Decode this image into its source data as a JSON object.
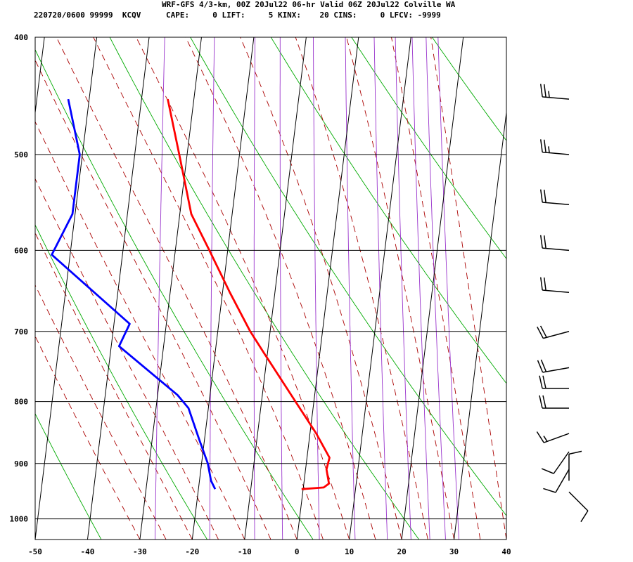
{
  "header": {
    "title": "WRF-GFS 4/3-km, 00Z 20Jul22 06-hr Valid 06Z 20Jul22 Colville WA",
    "station": "220720/0600 99999  KCQV",
    "indices": "CAPE:     0 LIFT:     5 KINX:    20 CINS:     0 LFCV: -9999"
  },
  "colors": {
    "temperature": "#ff0000",
    "dewpoint": "#0000ff",
    "dry_adiabat": "#00aa00",
    "moist_adiabat": "#aa0000",
    "mixing_ratio": "#9933cc",
    "grid": "#000000"
  },
  "chart_data": {
    "type": "skew-t log-p sounding",
    "x_ticks": [
      "-50",
      "-40",
      "-30",
      "-20",
      "-10",
      "0",
      "10",
      "20",
      "30",
      "40"
    ],
    "y_ticks": [
      "400",
      "500",
      "600",
      "700",
      "800",
      "900",
      "1000"
    ],
    "xlim": [
      -50,
      40
    ],
    "ylim_pressure_hPa": [
      1040,
      400
    ],
    "grid": true,
    "series": [
      {
        "key": "temperature",
        "units": "degC (unskewed)",
        "points": [
          {
            "p": 450,
            "t": -35.0
          },
          {
            "p": 500,
            "t": -31.5
          },
          {
            "p": 560,
            "t": -27.8
          },
          {
            "p": 600,
            "t": -23.5
          },
          {
            "p": 650,
            "t": -18.6
          },
          {
            "p": 700,
            "t": -13.8
          },
          {
            "p": 730,
            "t": -10.6
          },
          {
            "p": 800,
            "t": -3.5
          },
          {
            "p": 850,
            "t": 1.2
          },
          {
            "p": 890,
            "t": 4.3
          },
          {
            "p": 910,
            "t": 4.0
          },
          {
            "p": 935,
            "t": 4.8
          },
          {
            "p": 942,
            "t": 3.9
          },
          {
            "p": 945,
            "t": -0.3
          }
        ]
      },
      {
        "key": "dewpoint",
        "units": "degC (unskewed)",
        "points": [
          {
            "p": 450,
            "t": -54.0
          },
          {
            "p": 500,
            "t": -50.5
          },
          {
            "p": 560,
            "t": -50.5
          },
          {
            "p": 605,
            "t": -53.5
          },
          {
            "p": 690,
            "t": -37.0
          },
          {
            "p": 720,
            "t": -38.5
          },
          {
            "p": 790,
            "t": -26.2
          },
          {
            "p": 810,
            "t": -23.8
          },
          {
            "p": 860,
            "t": -21.0
          },
          {
            "p": 900,
            "t": -18.8
          },
          {
            "p": 930,
            "t": -17.8
          },
          {
            "p": 945,
            "t": -16.8
          }
        ]
      }
    ],
    "wind_barbs": [
      {
        "p": 450,
        "dir_deg": 275,
        "speed_kt": 25
      },
      {
        "p": 500,
        "dir_deg": 275,
        "speed_kt": 25
      },
      {
        "p": 550,
        "dir_deg": 275,
        "speed_kt": 20
      },
      {
        "p": 600,
        "dir_deg": 275,
        "speed_kt": 20
      },
      {
        "p": 650,
        "dir_deg": 275,
        "speed_kt": 20
      },
      {
        "p": 700,
        "dir_deg": 255,
        "speed_kt": 20
      },
      {
        "p": 750,
        "dir_deg": 260,
        "speed_kt": 20
      },
      {
        "p": 780,
        "dir_deg": 270,
        "speed_kt": 20
      },
      {
        "p": 810,
        "dir_deg": 270,
        "speed_kt": 20
      },
      {
        "p": 850,
        "dir_deg": 250,
        "speed_kt": 15
      },
      {
        "p": 880,
        "dir_deg": 215,
        "speed_kt": 10
      },
      {
        "p": 910,
        "dir_deg": 210,
        "speed_kt": 10
      },
      {
        "p": 930,
        "dir_deg": 0,
        "speed_kt": 10
      },
      {
        "p": 950,
        "dir_deg": 135,
        "speed_kt": 10
      }
    ]
  }
}
